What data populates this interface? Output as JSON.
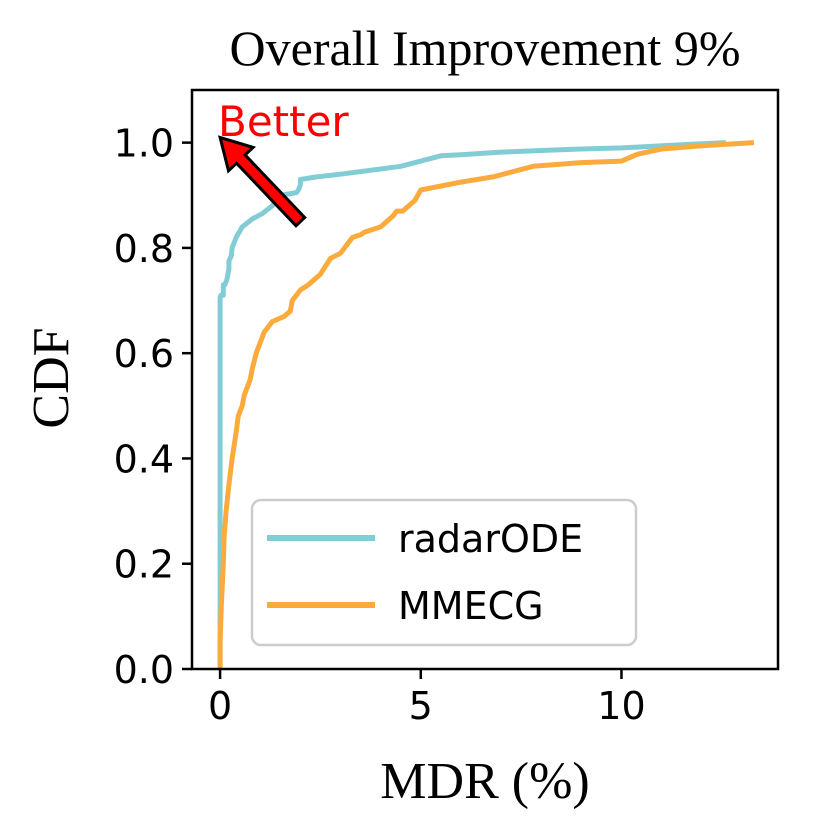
{
  "chart_data": {
    "type": "line",
    "title": "Overall Improvement 9%",
    "xlabel": "MDR (%)",
    "ylabel": "CDF",
    "xlim": [
      -0.7,
      13.9
    ],
    "ylim": [
      0,
      1.1
    ],
    "xticks": [
      0,
      5,
      10
    ],
    "yticks": [
      0.0,
      0.2,
      0.4,
      0.6,
      0.8,
      1.0
    ],
    "xtick_labels": [
      "0",
      "5",
      "10"
    ],
    "ytick_labels": [
      "0.0",
      "0.2",
      "0.4",
      "0.6",
      "0.8",
      "1.0"
    ],
    "grid": false,
    "legend_position": "lower-right",
    "annotation": {
      "text": "Better",
      "color": "#ff0000",
      "arrow_from": [
        2.0,
        0.85
      ],
      "arrow_to": [
        0.0,
        1.01
      ]
    },
    "series": [
      {
        "name": "radarODE",
        "color": "#82cdd5",
        "x": [
          0.0,
          0.0,
          0.0,
          0.0,
          0.0,
          0.0,
          0.02,
          0.05,
          0.08,
          0.08,
          0.12,
          0.17,
          0.22,
          0.22,
          0.28,
          0.3,
          0.4,
          0.55,
          0.8,
          1.05,
          1.3,
          1.5,
          1.9,
          1.95,
          2.0,
          2.0,
          2.4,
          3.0,
          4.0,
          4.5,
          5.5,
          6.0,
          7.0,
          8.0,
          9.0,
          10.0,
          11.0,
          12.0,
          12.6
        ],
        "y": [
          0.0,
          0.1,
          0.3,
          0.5,
          0.6,
          0.705,
          0.71,
          0.71,
          0.71,
          0.73,
          0.73,
          0.74,
          0.76,
          0.775,
          0.785,
          0.8,
          0.82,
          0.84,
          0.855,
          0.865,
          0.88,
          0.9,
          0.905,
          0.91,
          0.92,
          0.93,
          0.935,
          0.94,
          0.95,
          0.955,
          0.975,
          0.977,
          0.982,
          0.985,
          0.988,
          0.99,
          0.994,
          0.998,
          1.0
        ]
      },
      {
        "name": "MMECG",
        "color": "#fbab3c",
        "x": [
          0.0,
          0.0,
          0.03,
          0.08,
          0.1,
          0.15,
          0.22,
          0.3,
          0.4,
          0.45,
          0.55,
          0.6,
          0.75,
          0.8,
          0.9,
          1.0,
          1.1,
          1.3,
          1.6,
          1.75,
          1.8,
          2.0,
          2.2,
          2.5,
          2.75,
          3.0,
          3.1,
          3.3,
          3.5,
          3.6,
          4.0,
          4.3,
          4.4,
          4.55,
          4.85,
          5.0,
          6.0,
          6.8,
          7.8,
          9.0,
          10.0,
          10.4,
          11.0,
          12.0,
          13.3
        ],
        "y": [
          0.0,
          0.05,
          0.12,
          0.2,
          0.25,
          0.3,
          0.35,
          0.4,
          0.45,
          0.48,
          0.5,
          0.52,
          0.55,
          0.57,
          0.6,
          0.62,
          0.64,
          0.66,
          0.67,
          0.68,
          0.7,
          0.72,
          0.73,
          0.75,
          0.78,
          0.79,
          0.8,
          0.82,
          0.825,
          0.83,
          0.84,
          0.86,
          0.87,
          0.87,
          0.89,
          0.91,
          0.925,
          0.935,
          0.955,
          0.962,
          0.965,
          0.978,
          0.988,
          0.994,
          1.0
        ]
      }
    ]
  }
}
